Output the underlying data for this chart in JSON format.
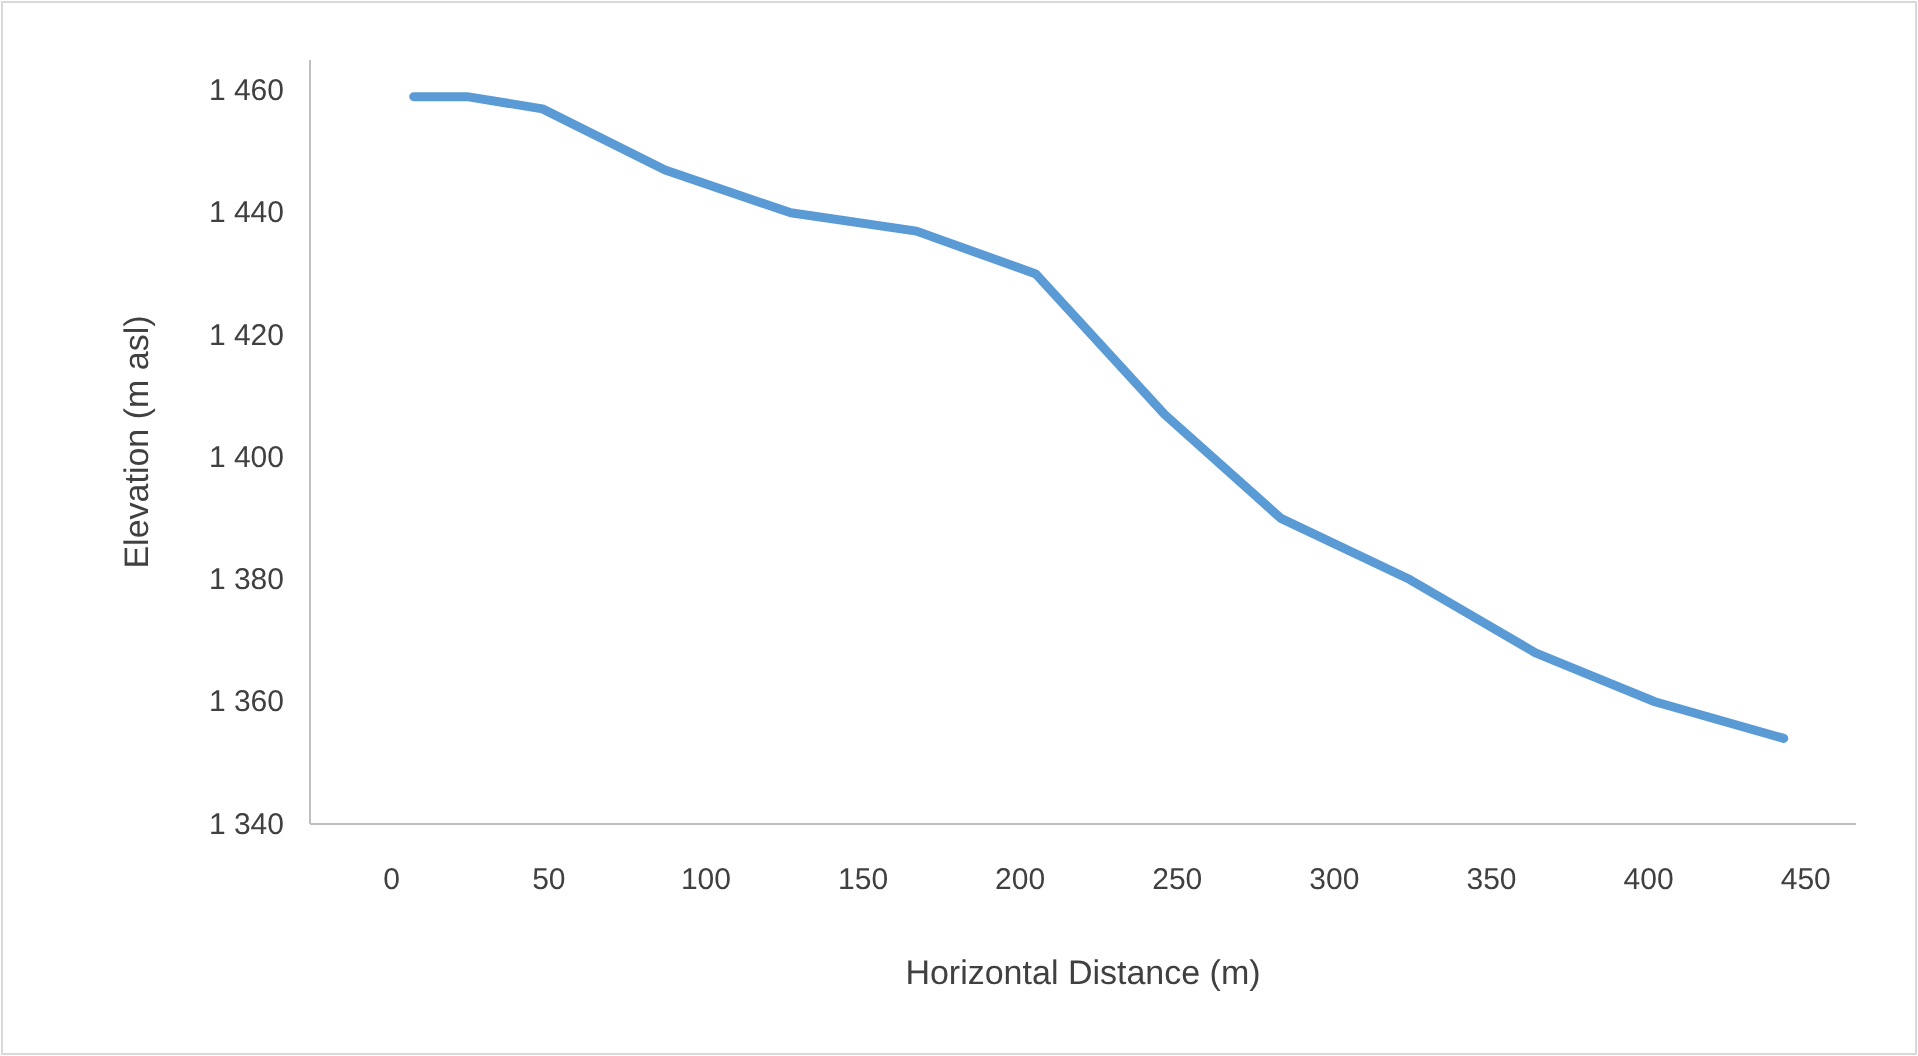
{
  "chart_data": {
    "type": "line",
    "xlabel": "Horizontal Distance (m)",
    "ylabel": "Elevation (m asl)",
    "xlim": [
      -26,
      466
    ],
    "xticks": [
      0,
      50,
      100,
      150,
      200,
      250,
      300,
      350,
      400,
      450
    ],
    "ylim": [
      1340,
      1465
    ],
    "yticks": [
      {
        "value": 1340,
        "label": "1 340"
      },
      {
        "value": 1360,
        "label": "1 360"
      },
      {
        "value": 1380,
        "label": "1 380"
      },
      {
        "value": 1400,
        "label": "1 400"
      },
      {
        "value": 1420,
        "label": "1 420"
      },
      {
        "value": 1440,
        "label": "1 440"
      },
      {
        "value": 1460,
        "label": "1 460"
      }
    ],
    "grid": false,
    "marker": "none",
    "line_style": "solid",
    "series": [
      {
        "color": "#5b9bd5",
        "x": [
          7,
          24,
          48,
          87,
          127,
          167,
          205,
          246,
          283,
          324,
          364,
          402,
          443
        ],
        "values": [
          1459,
          1459,
          1457,
          1447,
          1440,
          1437,
          1430,
          1407,
          1390,
          1380,
          1368,
          1360,
          1354
        ]
      }
    ]
  }
}
